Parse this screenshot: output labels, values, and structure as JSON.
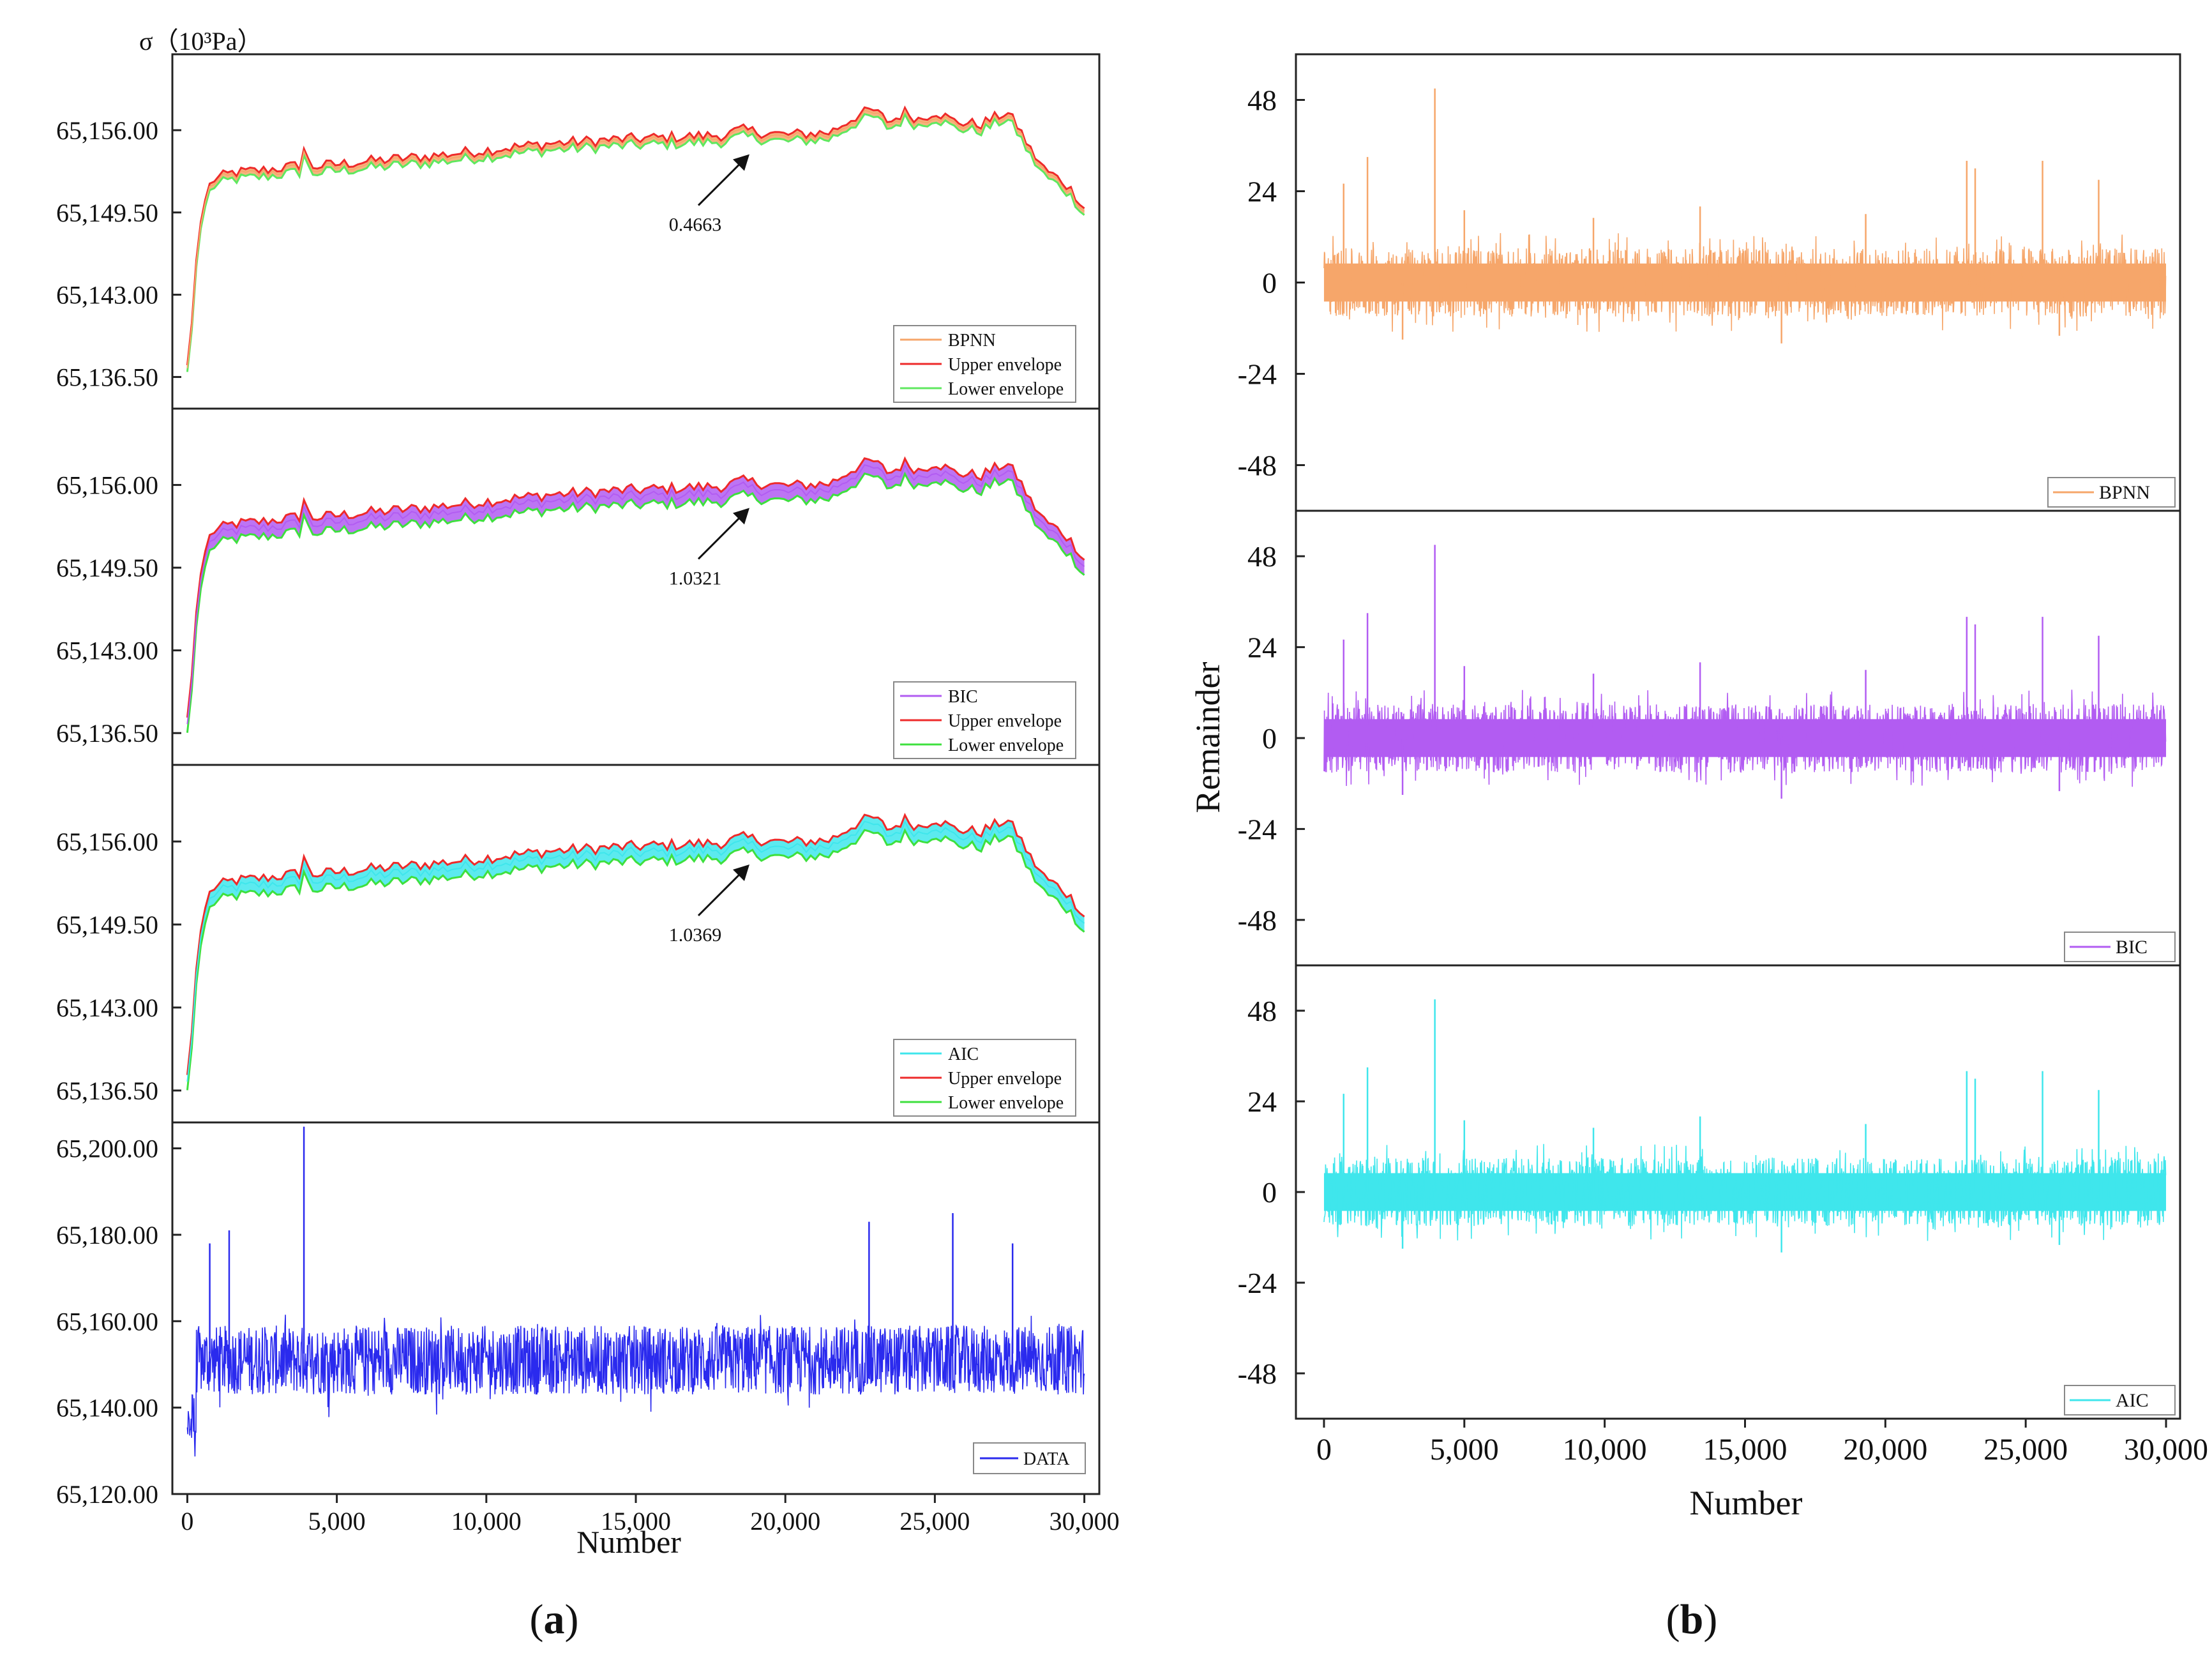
{
  "figure": {
    "panel_a_caption_letter": "a",
    "panel_b_caption_letter": "b",
    "caption_open": "(",
    "caption_close": ")"
  },
  "chart_data": [
    {
      "panel": "a",
      "type": "line",
      "title": "σ（10³Pa）",
      "xlabel": "Number",
      "xlim": [
        -500,
        30500
      ],
      "xticks": [
        0,
        5000,
        10000,
        15000,
        20000,
        25000,
        30000
      ],
      "xtick_labels": [
        "0",
        "5,000",
        "10,000",
        "15,000",
        "20,000",
        "25,000",
        "30,000"
      ],
      "subplots": [
        {
          "id": "a1",
          "ylim": [
            65134,
            65162
          ],
          "yticks": [
            65136.5,
            65143,
            65149.5,
            65156
          ],
          "ytick_labels": [
            "65,136.50",
            "65,143.00",
            "65,149.50",
            "65,156.00"
          ],
          "annotation": "0.4663",
          "annotation_target": [
            18800,
            65154.1
          ],
          "envelope_halfwidth": 0.23,
          "legend": [
            "BPNN",
            "Upper envelope",
            "Lower envelope"
          ],
          "series": [
            {
              "name": "BPNN",
              "color": "#f6a66a"
            },
            {
              "name": "Upper envelope",
              "color": "#ee2a2a"
            },
            {
              "name": "Lower envelope",
              "color": "#5fe85f"
            }
          ]
        },
        {
          "id": "a2",
          "ylim": [
            65134,
            65162
          ],
          "yticks": [
            65136.5,
            65143,
            65149.5,
            65156
          ],
          "ytick_labels": [
            "65,136.50",
            "65,143.00",
            "65,149.50",
            "65,156.00"
          ],
          "annotation": "1.0321",
          "annotation_target": [
            18800,
            65154.2
          ],
          "envelope_halfwidth": 0.52,
          "legend": [
            "BIC",
            "Upper envelope",
            "Lower envelope"
          ],
          "series": [
            {
              "name": "BIC",
              "color": "#b25cf2"
            },
            {
              "name": "Upper envelope",
              "color": "#ee2a2a"
            },
            {
              "name": "Lower envelope",
              "color": "#3ee03e"
            }
          ]
        },
        {
          "id": "a3",
          "ylim": [
            65134,
            65162
          ],
          "yticks": [
            65136.5,
            65143,
            65149.5,
            65156
          ],
          "ytick_labels": [
            "65,136.50",
            "65,143.00",
            "65,149.50",
            "65,156.00"
          ],
          "annotation": "1.0369",
          "annotation_target": [
            18800,
            65154.2
          ],
          "envelope_halfwidth": 0.52,
          "legend": [
            "AIC",
            "Upper envelope",
            "Lower envelope"
          ],
          "series": [
            {
              "name": "AIC",
              "color": "#3fe6ec"
            },
            {
              "name": "Upper envelope",
              "color": "#ee2a2a"
            },
            {
              "name": "Lower envelope",
              "color": "#3ee03e"
            }
          ]
        },
        {
          "id": "a4",
          "ylim": [
            65120,
            65206
          ],
          "yticks": [
            65120,
            65140,
            65160,
            65180,
            65200
          ],
          "ytick_labels": [
            "65,120.00",
            "65,140.00",
            "65,160.00",
            "65,180.00",
            "65,200.00"
          ],
          "legend": [
            "DATA"
          ],
          "series": [
            {
              "name": "DATA",
              "color": "#2a2aee",
              "base_mean": 65152.5,
              "band_low": 65143,
              "band_high": 65159
            }
          ],
          "spikes": [
            {
              "x": 3900,
              "y": 65205
            },
            {
              "x": 1400,
              "y": 65181
            },
            {
              "x": 750,
              "y": 65178
            },
            {
              "x": 22800,
              "y": 65183
            },
            {
              "x": 25600,
              "y": 65185
            },
            {
              "x": 27600,
              "y": 65178
            }
          ]
        }
      ],
      "trend": {
        "x": [
          0,
          120,
          300,
          500,
          800,
          1500,
          2500,
          3800,
          3950,
          4050,
          4200,
          6000,
          8000,
          10000,
          12000,
          14000,
          16000,
          18000,
          18500,
          20000,
          21500,
          22300,
          22900,
          23500,
          24000,
          24500,
          25000,
          25600,
          26500,
          27400,
          27800,
          28200,
          28700,
          29300,
          29800,
          30000
        ],
        "y": [
          65137.2,
          65139.5,
          65145.5,
          65149.5,
          65151.8,
          65152.4,
          65152.6,
          65153.0,
          65155.0,
          65153.3,
          65152.9,
          65153.3,
          65153.7,
          65154.2,
          65154.7,
          65155.0,
          65155.2,
          65155.4,
          65155.8,
          65155.4,
          65155.6,
          65156.8,
          65157.4,
          65156.4,
          65157.2,
          65156.6,
          65157.3,
          65156.5,
          65156.2,
          65157.2,
          65156.0,
          65154.2,
          65152.6,
          65151.7,
          65150.4,
          65149.6
        ]
      }
    },
    {
      "panel": "b",
      "type": "line",
      "xlabel": "Number",
      "ylabel": "Remainder",
      "xlim": [
        -1000,
        30500
      ],
      "xticks": [
        0,
        5000,
        10000,
        15000,
        20000,
        25000,
        30000
      ],
      "xtick_labels": [
        "0",
        "5,000",
        "10,000",
        "15,000",
        "20,000",
        "25,000",
        "30,000"
      ],
      "ylim": [
        -60,
        60
      ],
      "yticks": [
        48,
        24,
        0,
        -24,
        -48
      ],
      "ytick_labels": [
        "48",
        "24",
        "0",
        "-24",
        "-48"
      ],
      "subplots": [
        {
          "id": "b1",
          "legend": "BPNN",
          "color": "#f6a66a"
        },
        {
          "id": "b2",
          "legend": "BIC",
          "color": "#b25cf2"
        },
        {
          "id": "b3",
          "legend": "AIC",
          "color": "#3fe6ec"
        }
      ],
      "spikes": [
        {
          "x": 3950,
          "y": 51
        },
        {
          "x": 1550,
          "y": 33
        },
        {
          "x": 22900,
          "y": 32
        },
        {
          "x": 25600,
          "y": 32
        },
        {
          "x": 23200,
          "y": 30
        },
        {
          "x": 27600,
          "y": 27
        },
        {
          "x": 700,
          "y": 26
        },
        {
          "x": 5000,
          "y": 19
        },
        {
          "x": 13400,
          "y": 20
        },
        {
          "x": 19300,
          "y": 18
        },
        {
          "x": 9600,
          "y": 17
        },
        {
          "x": 16300,
          "y": -16
        },
        {
          "x": 2800,
          "y": -15
        },
        {
          "x": 26200,
          "y": -14
        }
      ]
    }
  ]
}
